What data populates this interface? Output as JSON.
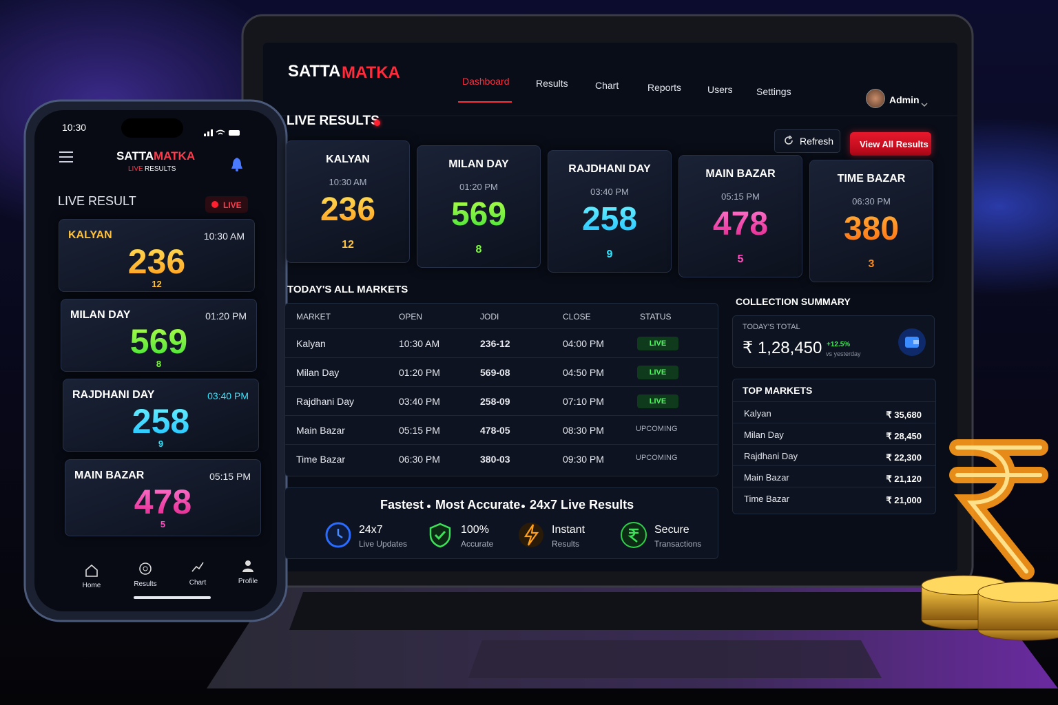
{
  "laptop": {
    "brand": [
      "SATTA",
      "MATKA"
    ],
    "nav": [
      "Dashboard",
      "Results",
      "Chart",
      "Reports",
      "Users",
      "Settings"
    ],
    "user": "Admin",
    "live_title": "LIVE RESULTS",
    "buttons": {
      "refresh": "Refresh",
      "view_all": "View All Results"
    },
    "cards": [
      {
        "market": "KALYAN",
        "time": "10:30 AM",
        "result": "236",
        "single": "12"
      },
      {
        "market": "MILAN DAY",
        "time": "01:20 PM",
        "result": "569",
        "single": "8"
      },
      {
        "market": "RAJDHANI DAY",
        "time": "03:40 PM",
        "result": "258",
        "single": "9"
      },
      {
        "market": "MAIN BAZAR",
        "time": "05:15 PM",
        "result": "478",
        "single": "5"
      },
      {
        "market": "TIME BAZAR",
        "time": "06:30 PM",
        "result": "380",
        "single": "3"
      }
    ],
    "markets_title": "TODAY'S ALL MARKETS",
    "table": {
      "headers": [
        "MARKET",
        "OPEN",
        "JODI",
        "CLOSE",
        "STATUS"
      ],
      "rows": [
        [
          "Kalyan",
          "10:30 AM",
          "236-12",
          "04:00 PM",
          "LIVE"
        ],
        [
          "Milan Day",
          "01:20 PM",
          "569-08",
          "04:50 PM",
          "LIVE"
        ],
        [
          "Rajdhani Day",
          "03:40 PM",
          "258-09",
          "07:10 PM",
          "LIVE"
        ],
        [
          "Main Bazar",
          "05:15 PM",
          "478-05",
          "08:30 PM",
          "UPCOMING"
        ],
        [
          "Time Bazar",
          "06:30 PM",
          "380-03",
          "09:30 PM",
          "UPCOMING"
        ]
      ]
    },
    "collection": {
      "title": "COLLECTION SUMMARY",
      "label": "TODAY'S TOTAL",
      "total": "₹ 1,28,450",
      "change": "+12.5%",
      "change_note": "vs yesterday"
    },
    "top_markets": {
      "title": "TOP MARKETS",
      "rows": [
        [
          "Kalyan",
          "₹ 35,680"
        ],
        [
          "Milan Day",
          "₹ 28,450"
        ],
        [
          "Rajdhani Day",
          "₹ 22,300"
        ],
        [
          "Main Bazar",
          "₹ 21,120"
        ],
        [
          "Time Bazar",
          "₹ 21,000"
        ]
      ]
    },
    "tagline": [
      "Fastest",
      "Most Accurate",
      "24x7 Live Results"
    ],
    "features": [
      {
        "title": "24x7",
        "subtitle": "Live Updates"
      },
      {
        "title": "100%",
        "subtitle": "Accurate"
      },
      {
        "title": "Instant",
        "subtitle": "Results"
      },
      {
        "title": "Secure",
        "subtitle": "Transactions"
      }
    ]
  },
  "phone": {
    "time": "10:30",
    "brand": [
      "SATTA",
      "MATKA"
    ],
    "subtitle": [
      "LIVE",
      "RESULTS"
    ],
    "section": "LIVE RESULT",
    "live_badge": "LIVE",
    "cards": [
      {
        "market": "KALYAN",
        "time": "10:30 AM",
        "result": "236",
        "single": "12"
      },
      {
        "market": "MILAN DAY",
        "time": "01:20 PM",
        "result": "569",
        "single": "8"
      },
      {
        "market": "RAJDHANI DAY",
        "time": "03:40 PM",
        "result": "258",
        "single": "9"
      },
      {
        "market": "MAIN BAZAR",
        "time": "05:15 PM",
        "result": "478",
        "single": "5"
      }
    ],
    "tabs": [
      "Home",
      "Results",
      "Chart",
      "Profile"
    ]
  }
}
